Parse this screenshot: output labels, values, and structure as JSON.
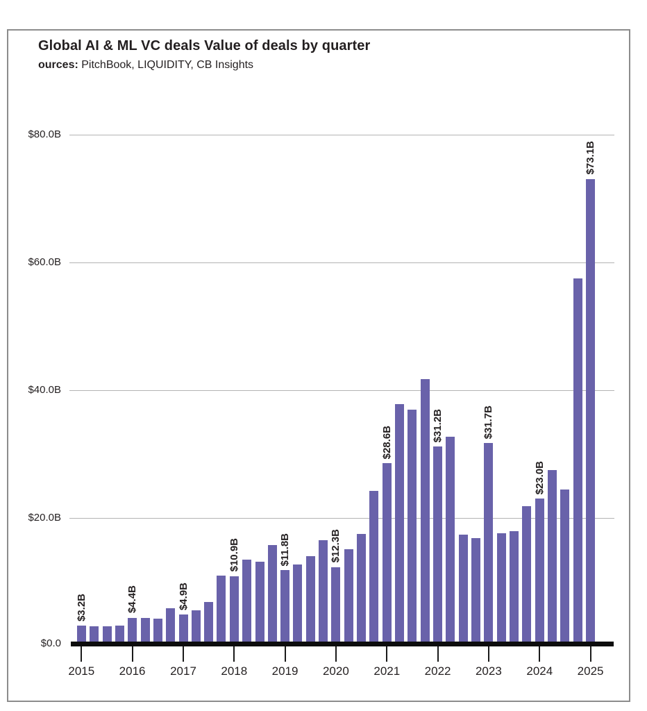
{
  "header": {
    "title": "Global AI & ML VC deals Value of deals by quarter",
    "source_prefix": "ources:",
    "source_text": " PitchBook, LIQUIDITY, CB Insights"
  },
  "chart_data": {
    "type": "bar",
    "title": "Global AI & ML VC deals Value of deals by quarter",
    "sources": "ources: PitchBook, LIQUIDITY, CB Insights",
    "unit": "USD billions per quarter",
    "grid": "horizontal",
    "legend": "none",
    "bar_color": "#6962aa",
    "ylim": [
      0,
      87
    ],
    "y_ticks": [
      {
        "label": "$80.0B",
        "value": 80
      },
      {
        "label": "$60.0B",
        "value": 60
      },
      {
        "label": "$40.0B",
        "value": 40
      },
      {
        "label": "$20.0B",
        "value": 20
      },
      {
        "label": "$0.0",
        "value": 0
      }
    ],
    "x_year_labels": [
      "2015",
      "2016",
      "2017",
      "2018",
      "2019",
      "2020",
      "2021",
      "2022",
      "2023",
      "2024",
      "2025"
    ],
    "points": [
      {
        "quarter": "2015 Q1",
        "value": 3.2,
        "label": "$3.2B"
      },
      {
        "quarter": "2015 Q2",
        "value": 3.1
      },
      {
        "quarter": "2015 Q3",
        "value": 3.1
      },
      {
        "quarter": "2015 Q4",
        "value": 3.2
      },
      {
        "quarter": "2016 Q1",
        "value": 4.4,
        "label": "$4.4B"
      },
      {
        "quarter": "2016 Q2",
        "value": 4.4
      },
      {
        "quarter": "2016 Q3",
        "value": 4.2
      },
      {
        "quarter": "2016 Q4",
        "value": 5.9
      },
      {
        "quarter": "2017 Q1",
        "value": 4.9,
        "label": "$4.9B"
      },
      {
        "quarter": "2017 Q2",
        "value": 5.6
      },
      {
        "quarter": "2017 Q3",
        "value": 6.9
      },
      {
        "quarter": "2017 Q4",
        "value": 11.0
      },
      {
        "quarter": "2018 Q1",
        "value": 10.9,
        "label": "$10.9B"
      },
      {
        "quarter": "2018 Q2",
        "value": 13.5
      },
      {
        "quarter": "2018 Q3",
        "value": 13.2
      },
      {
        "quarter": "2018 Q4",
        "value": 15.8
      },
      {
        "quarter": "2019 Q1",
        "value": 11.8,
        "label": "$11.8B"
      },
      {
        "quarter": "2019 Q2",
        "value": 12.7
      },
      {
        "quarter": "2019 Q3",
        "value": 14.0
      },
      {
        "quarter": "2019 Q4",
        "value": 16.5
      },
      {
        "quarter": "2020 Q1",
        "value": 12.3,
        "label": "$12.3B"
      },
      {
        "quarter": "2020 Q2",
        "value": 15.1
      },
      {
        "quarter": "2020 Q3",
        "value": 17.5
      },
      {
        "quarter": "2020 Q4",
        "value": 24.2
      },
      {
        "quarter": "2021 Q1",
        "value": 28.6,
        "label": "$28.6B"
      },
      {
        "quarter": "2021 Q2",
        "value": 37.8
      },
      {
        "quarter": "2021 Q3",
        "value": 37.0
      },
      {
        "quarter": "2021 Q4",
        "value": 41.7
      },
      {
        "quarter": "2022 Q1",
        "value": 31.2,
        "label": "$31.2B"
      },
      {
        "quarter": "2022 Q2",
        "value": 32.7
      },
      {
        "quarter": "2022 Q3",
        "value": 17.4
      },
      {
        "quarter": "2022 Q4",
        "value": 16.8
      },
      {
        "quarter": "2023 Q1",
        "value": 31.7,
        "label": "$31.7B"
      },
      {
        "quarter": "2023 Q2",
        "value": 17.6
      },
      {
        "quarter": "2023 Q3",
        "value": 17.9
      },
      {
        "quarter": "2023 Q4",
        "value": 21.9
      },
      {
        "quarter": "2024 Q1",
        "value": 23.0,
        "label": "$23.0B"
      },
      {
        "quarter": "2024 Q2",
        "value": 27.5
      },
      {
        "quarter": "2024 Q3",
        "value": 24.5
      },
      {
        "quarter": "2024 Q4",
        "value": 57.5
      },
      {
        "quarter": "2025 Q1",
        "value": 73.1,
        "label": "$73.1B"
      }
    ]
  }
}
